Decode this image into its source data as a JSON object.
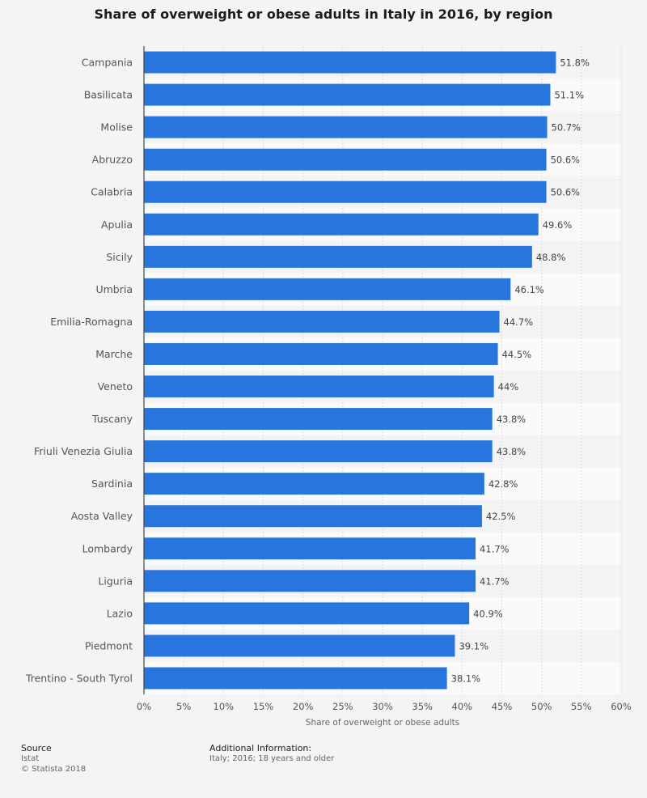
{
  "chart_data": {
    "type": "bar",
    "orientation": "horizontal",
    "title": "Share of overweight or obese adults in Italy in 2016, by region",
    "xlabel": "Share of overweight or obese adults",
    "categories": [
      "Campania",
      "Basilicata",
      "Molise",
      "Abruzzo",
      "Calabria",
      "Apulia",
      "Sicily",
      "Umbria",
      "Emilia-Romagna",
      "Marche",
      "Veneto",
      "Tuscany",
      "Friuli Venezia Giulia",
      "Sardinia",
      "Aosta Valley",
      "Lombardy",
      "Liguria",
      "Lazio",
      "Piedmont",
      "Trentino - South Tyrol"
    ],
    "values": [
      51.8,
      51.1,
      50.7,
      50.6,
      50.6,
      49.6,
      48.8,
      46.1,
      44.7,
      44.5,
      44,
      43.8,
      43.8,
      42.8,
      42.5,
      41.7,
      41.7,
      40.9,
      39.1,
      38.1
    ],
    "value_labels": [
      "51.8%",
      "51.1%",
      "50.7%",
      "50.6%",
      "50.6%",
      "49.6%",
      "48.8%",
      "46.1%",
      "44.7%",
      "44.5%",
      "44%",
      "43.8%",
      "43.8%",
      "42.8%",
      "42.5%",
      "41.7%",
      "41.7%",
      "40.9%",
      "39.1%",
      "38.1%"
    ],
    "xlim": [
      0,
      60
    ],
    "ticks": [
      0,
      5,
      10,
      15,
      20,
      25,
      30,
      35,
      40,
      45,
      50,
      55,
      60
    ],
    "tick_labels": [
      "0%",
      "5%",
      "10%",
      "15%",
      "20%",
      "25%",
      "30%",
      "35%",
      "40%",
      "45%",
      "50%",
      "55%",
      "60%"
    ],
    "grid": true,
    "bar_color": "#2876dd"
  },
  "footer": {
    "source_heading": "Source",
    "source_name": "Istat",
    "copyright": "© Statista 2018",
    "info_heading": "Additional Information:",
    "info_text": "Italy; 2016; 18 years and older"
  }
}
